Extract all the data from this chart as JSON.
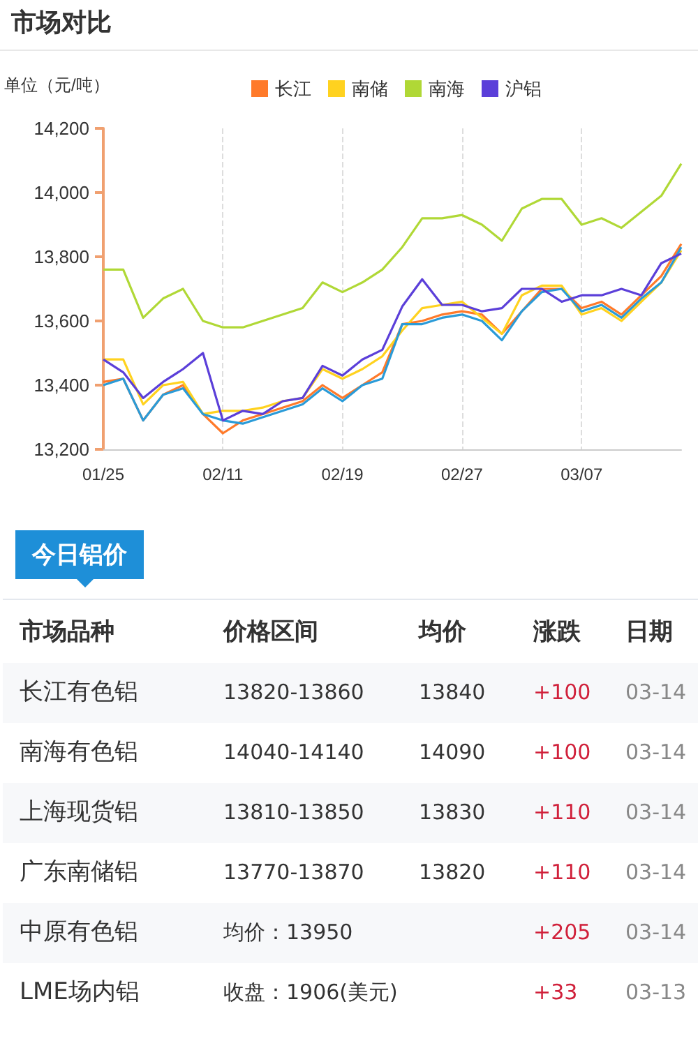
{
  "chart_data": [
    {
      "type": "line",
      "title": "市场对比",
      "ylabel": "单位（元/吨）",
      "categories": [
        "01/25",
        null,
        null,
        null,
        null,
        null,
        "02/11",
        null,
        null,
        null,
        null,
        null,
        "02/19",
        null,
        null,
        null,
        null,
        null,
        "02/27",
        null,
        null,
        null,
        null,
        null,
        "03/07",
        null,
        null,
        null,
        null,
        null
      ],
      "series": [
        {
          "name": "长江",
          "color": "#ff7a2a",
          "values": [
            13410,
            13420,
            13290,
            13370,
            13400,
            13310,
            13250,
            13290,
            13310,
            13330,
            13350,
            13400,
            13360,
            13400,
            13440,
            13590,
            13600,
            13620,
            13630,
            13620,
            13560,
            13630,
            13700,
            13700,
            13640,
            13660,
            13620,
            13680,
            13740,
            13840
          ]
        },
        {
          "name": "南储",
          "color": "#ffd21f",
          "values": [
            13480,
            13480,
            13340,
            13400,
            13410,
            13310,
            13320,
            13320,
            13330,
            13350,
            13360,
            13450,
            13420,
            13450,
            13490,
            13570,
            13640,
            13650,
            13660,
            13610,
            13560,
            13680,
            13710,
            13710,
            13620,
            13640,
            13600,
            13660,
            13720,
            13820
          ]
        },
        {
          "name": "南海",
          "color": "#b0d836",
          "values": [
            13760,
            13760,
            13610,
            13670,
            13700,
            13600,
            13580,
            13580,
            13600,
            13620,
            13640,
            13720,
            13690,
            13720,
            13760,
            13830,
            13920,
            13920,
            13930,
            13900,
            13850,
            13950,
            13980,
            13980,
            13900,
            13920,
            13890,
            13940,
            13990,
            14090
          ]
        },
        {
          "color": "#2a9bd8",
          "values": [
            13400,
            13420,
            13290,
            13370,
            13390,
            13310,
            13290,
            13280,
            13300,
            13320,
            13340,
            13390,
            13350,
            13400,
            13420,
            13590,
            13590,
            13610,
            13620,
            13600,
            13540,
            13630,
            13690,
            13700,
            13630,
            13650,
            13610,
            13670,
            13720,
            13830
          ]
        },
        {
          "name": "沪铝",
          "color": "#5b3fd9",
          "values": [
            13480,
            13440,
            13360,
            13410,
            13450,
            13500,
            13290,
            13320,
            13310,
            13350,
            13360,
            13460,
            13430,
            13480,
            13510,
            13645,
            13730,
            13650,
            13650,
            13630,
            13640,
            13700,
            13700,
            13660,
            13680,
            13680,
            13700,
            13680,
            13780,
            13810
          ]
        }
      ],
      "ylim": [
        13200,
        14200
      ],
      "yticks": [
        {
          "value": 13200,
          "label": "13,200"
        },
        {
          "value": 13400,
          "label": "13,400"
        },
        {
          "value": 13600,
          "label": "13,600"
        },
        {
          "value": 13800,
          "label": "13,800"
        },
        {
          "value": 14000,
          "label": "14,000"
        },
        {
          "value": 14200,
          "label": "14,200"
        }
      ],
      "grid": "x",
      "legend": "top",
      "marker": "none",
      "line_style": "solid"
    },
    {
      "type": "other",
      "title": "今日铝价",
      "annotations": [
        "市场品种",
        "价格区间",
        "均价",
        "涨跌",
        "日期",
        "长江有色铝",
        "13820-13860",
        "13840",
        "+100",
        "03-14",
        "南海有色铝",
        "14040-14140",
        "14090",
        "+100",
        "03-14",
        "上海现货铝",
        "13810-13850",
        "13830",
        "+110",
        "03-14",
        "广东南储铝",
        "13770-13870",
        "13820",
        "+110",
        "03-14",
        "中原有色铝",
        "均价：13950",
        null,
        "+205",
        "03-14",
        "LME场内铝",
        "收盘：1906(美元)",
        null,
        "+33",
        "03-13"
      ]
    }
  ]
}
